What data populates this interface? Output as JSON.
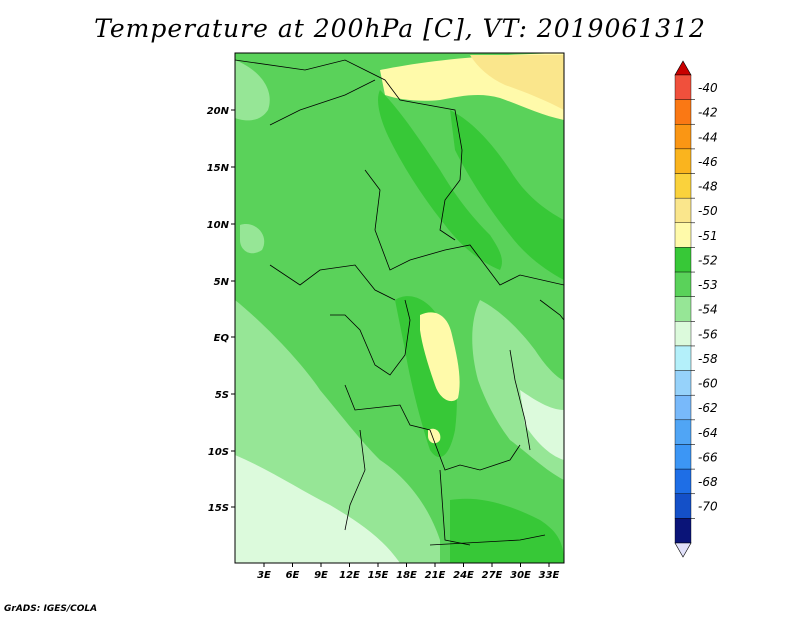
{
  "title": "Temperature at 200hPa [C], VT: 2019061312",
  "credit": "GrADS: IGES/COLA",
  "latitude_labels": [
    "20N",
    "15N",
    "10N",
    "5N",
    "EQ",
    "5S",
    "10S",
    "15S"
  ],
  "longitude_labels": [
    "3E",
    "6E",
    "9E",
    "12E",
    "15E",
    "18E",
    "21E",
    "24E",
    "27E",
    "30E",
    "33E"
  ],
  "colorbar": {
    "labels": [
      "-40",
      "-42",
      "-44",
      "-46",
      "-48",
      "-50",
      "-51",
      "-52",
      "-53",
      "-54",
      "-56",
      "-58",
      "-60",
      "-62",
      "-64",
      "-66",
      "-68",
      "-70"
    ],
    "colors": [
      "#f0503c",
      "#fa7814",
      "#fa9614",
      "#fab41e",
      "#fad23c",
      "#fae68c",
      "#fffaaa",
      "#37c837",
      "#5ad25a",
      "#96e696",
      "#dcfadc",
      "#b4f0fa",
      "#96d2fa",
      "#78b9fa",
      "#50a5f5",
      "#3c96f5",
      "#1e6ee6",
      "#1450c8",
      "#0a1478"
    ],
    "top_color": "#c80000",
    "bottom_color": "#e1e1fa"
  }
}
